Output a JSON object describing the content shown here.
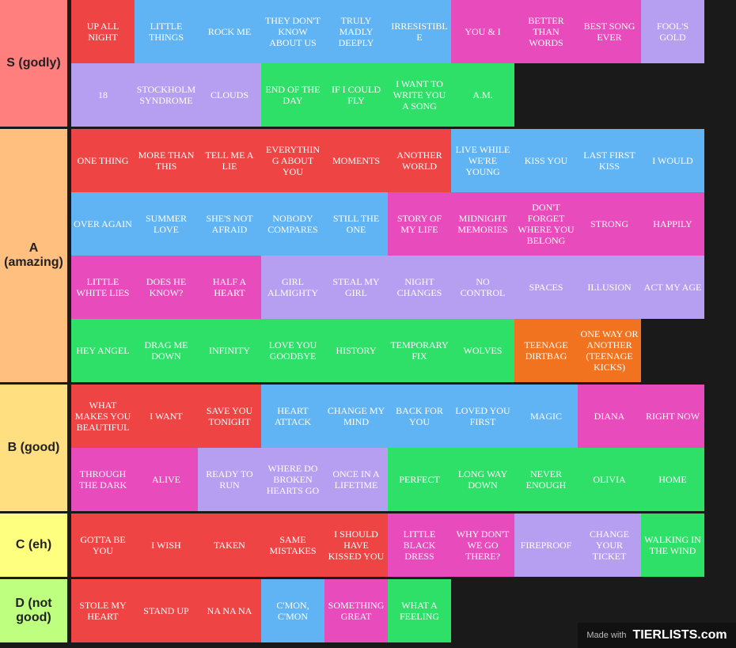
{
  "tiers": [
    {
      "label": "S (godly)",
      "color": "#ff7f7f",
      "items": [
        {
          "text": "UP ALL NIGHT",
          "color": "red"
        },
        {
          "text": "LITTLE THINGS",
          "color": "blue"
        },
        {
          "text": "ROCK ME",
          "color": "blue"
        },
        {
          "text": "THEY DON'T KNOW ABOUT US",
          "color": "blue"
        },
        {
          "text": "TRULY MADLY DEEPLY",
          "color": "blue"
        },
        {
          "text": "IRRESISTIBLE",
          "color": "blue"
        },
        {
          "text": "YOU & I",
          "color": "pink"
        },
        {
          "text": "BETTER THAN WORDS",
          "color": "pink"
        },
        {
          "text": "BEST SONG EVER",
          "color": "pink"
        },
        {
          "text": "FOOL'S GOLD",
          "color": "purple"
        },
        {
          "text": "18",
          "color": "purple"
        },
        {
          "text": "STOCKHOLM SYNDROME",
          "color": "purple"
        },
        {
          "text": "CLOUDS",
          "color": "purple"
        },
        {
          "text": "END OF THE DAY",
          "color": "green"
        },
        {
          "text": "IF I COULD FLY",
          "color": "green"
        },
        {
          "text": "I WANT TO WRITE YOU A SONG",
          "color": "green"
        },
        {
          "text": "A.M.",
          "color": "green"
        }
      ]
    },
    {
      "label": "A (amazing)",
      "color": "#ffbf7f",
      "items": [
        {
          "text": "ONE THING",
          "color": "red"
        },
        {
          "text": "MORE THAN THIS",
          "color": "red"
        },
        {
          "text": "TELL ME A LIE",
          "color": "red"
        },
        {
          "text": "EVERYTHING ABOUT YOU",
          "color": "red"
        },
        {
          "text": "MOMENTS",
          "color": "red"
        },
        {
          "text": "ANOTHER WORLD",
          "color": "red"
        },
        {
          "text": "LIVE WHILE WE'RE YOUNG",
          "color": "blue"
        },
        {
          "text": "KISS YOU",
          "color": "blue"
        },
        {
          "text": "LAST FIRST KISS",
          "color": "blue"
        },
        {
          "text": "I WOULD",
          "color": "blue"
        },
        {
          "text": "OVER AGAIN",
          "color": "blue"
        },
        {
          "text": "SUMMER LOVE",
          "color": "blue"
        },
        {
          "text": "SHE'S NOT AFRAID",
          "color": "blue"
        },
        {
          "text": "NOBODY COMPARES",
          "color": "blue"
        },
        {
          "text": "STILL THE ONE",
          "color": "blue"
        },
        {
          "text": "STORY OF MY LIFE",
          "color": "pink"
        },
        {
          "text": "MIDNIGHT MEMORIES",
          "color": "pink"
        },
        {
          "text": "DON'T FORGET WHERE YOU BELONG",
          "color": "pink"
        },
        {
          "text": "STRONG",
          "color": "pink"
        },
        {
          "text": "HAPPILY",
          "color": "pink"
        },
        {
          "text": "LITTLE WHITE LIES",
          "color": "pink"
        },
        {
          "text": "DOES HE KNOW?",
          "color": "pink"
        },
        {
          "text": "HALF A HEART",
          "color": "pink"
        },
        {
          "text": "GIRL ALMIGHTY",
          "color": "purple"
        },
        {
          "text": "STEAL MY GIRL",
          "color": "purple"
        },
        {
          "text": "NIGHT CHANGES",
          "color": "purple"
        },
        {
          "text": "NO CONTROL",
          "color": "purple"
        },
        {
          "text": "SPACES",
          "color": "purple"
        },
        {
          "text": "ILLUSION",
          "color": "purple"
        },
        {
          "text": "ACT MY AGE",
          "color": "purple"
        },
        {
          "text": "HEY ANGEL",
          "color": "green"
        },
        {
          "text": "DRAG ME DOWN",
          "color": "green"
        },
        {
          "text": "INFINITY",
          "color": "green"
        },
        {
          "text": "LOVE YOU GOODBYE",
          "color": "green"
        },
        {
          "text": "HISTORY",
          "color": "green"
        },
        {
          "text": "TEMPORARY FIX",
          "color": "green"
        },
        {
          "text": "WOLVES",
          "color": "green"
        },
        {
          "text": "TEENAGE DIRTBAG",
          "color": "orange"
        },
        {
          "text": "ONE WAY OR ANOTHER (TEENAGE KICKS)",
          "color": "orange"
        }
      ]
    },
    {
      "label": "B (good)",
      "color": "#ffdf7f",
      "items": [
        {
          "text": "WHAT MAKES YOU BEAUTIFUL",
          "color": "red"
        },
        {
          "text": "I WANT",
          "color": "red"
        },
        {
          "text": "SAVE YOU TONIGHT",
          "color": "red"
        },
        {
          "text": "HEART ATTACK",
          "color": "blue"
        },
        {
          "text": "CHANGE MY MIND",
          "color": "blue"
        },
        {
          "text": "BACK FOR YOU",
          "color": "blue"
        },
        {
          "text": "LOVED YOU FIRST",
          "color": "blue"
        },
        {
          "text": "MAGIC",
          "color": "blue"
        },
        {
          "text": "DIANA",
          "color": "pink"
        },
        {
          "text": "RIGHT NOW",
          "color": "pink"
        },
        {
          "text": "THROUGH THE DARK",
          "color": "pink"
        },
        {
          "text": "ALIVE",
          "color": "pink"
        },
        {
          "text": "READY TO RUN",
          "color": "purple"
        },
        {
          "text": "WHERE DO BROKEN HEARTS GO",
          "color": "purple"
        },
        {
          "text": "ONCE IN A LIFETIME",
          "color": "purple"
        },
        {
          "text": "PERFECT",
          "color": "green"
        },
        {
          "text": "LONG WAY DOWN",
          "color": "green"
        },
        {
          "text": "NEVER ENOUGH",
          "color": "green"
        },
        {
          "text": "OLIVIA",
          "color": "green"
        },
        {
          "text": "HOME",
          "color": "green"
        }
      ]
    },
    {
      "label": "C (eh)",
      "color": "#ffff7f",
      "items": [
        {
          "text": "GOTTA BE YOU",
          "color": "red"
        },
        {
          "text": "I WISH",
          "color": "red"
        },
        {
          "text": "TAKEN",
          "color": "red"
        },
        {
          "text": "SAME MISTAKES",
          "color": "red"
        },
        {
          "text": "I SHOULD HAVE KISSED YOU",
          "color": "red"
        },
        {
          "text": "LITTLE BLACK DRESS",
          "color": "pink"
        },
        {
          "text": "WHY DON'T WE GO THERE?",
          "color": "pink"
        },
        {
          "text": "FIREPROOF",
          "color": "purple"
        },
        {
          "text": "CHANGE YOUR TICKET",
          "color": "purple"
        },
        {
          "text": "WALKING IN THE WIND",
          "color": "green"
        }
      ]
    },
    {
      "label": "D (not good)",
      "color": "#bfff7f",
      "items": [
        {
          "text": "STOLE MY HEART",
          "color": "red"
        },
        {
          "text": "STAND UP",
          "color": "red"
        },
        {
          "text": "NA NA NA",
          "color": "red"
        },
        {
          "text": "C'MON, C'MON",
          "color": "blue"
        },
        {
          "text": "SOMETHING GREAT",
          "color": "pink"
        },
        {
          "text": "WHAT A FEELING",
          "color": "green"
        }
      ]
    }
  ],
  "watermark": {
    "made_with": "Made with",
    "brand": "TIERLISTS.com"
  }
}
